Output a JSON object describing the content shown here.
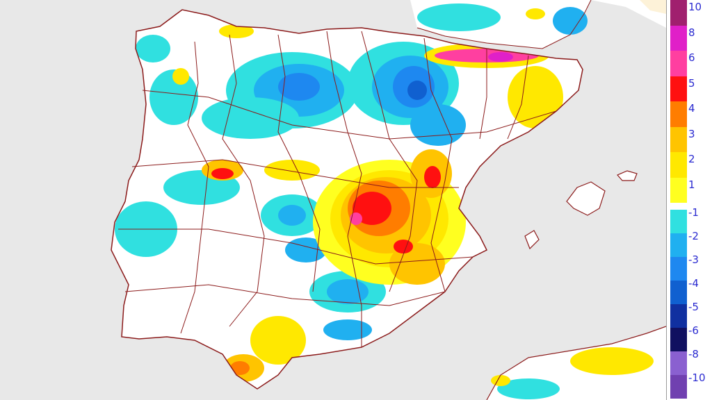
{
  "map": {
    "region": "Iberian Peninsula",
    "variable": "anomaly",
    "background_sea": "#e8e8e8",
    "land_color": "#ffffff",
    "border_color": "#8b1a1a"
  },
  "legend": {
    "positive": [
      {
        "label": "10",
        "color": "#a0206e"
      },
      {
        "label": "8",
        "color": "#e020c8"
      },
      {
        "label": "6",
        "color": "#ff3fa0"
      },
      {
        "label": "5",
        "color": "#ff1010"
      },
      {
        "label": "4",
        "color": "#ff7d00"
      },
      {
        "label": "3",
        "color": "#ffc400"
      },
      {
        "label": "2",
        "color": "#ffe800"
      },
      {
        "label": "1",
        "color": "#ffff20"
      }
    ],
    "negative": [
      {
        "label": "-1",
        "color": "#30e0e0"
      },
      {
        "label": "-2",
        "color": "#20b0f0"
      },
      {
        "label": "-3",
        "color": "#1e88f0"
      },
      {
        "label": "-4",
        "color": "#1060d0"
      },
      {
        "label": "-5",
        "color": "#1030a0"
      },
      {
        "label": "-6",
        "color": "#101060"
      },
      {
        "label": "-8",
        "color": "#8a60d0"
      },
      {
        "label": "-10",
        "color": "#7040b0"
      }
    ]
  }
}
